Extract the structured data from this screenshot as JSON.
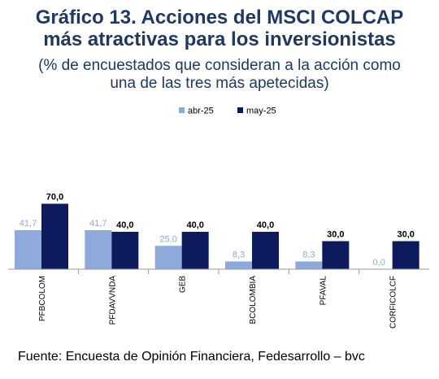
{
  "header": {
    "title_line1": "Gráfico 13. Acciones del MSCI COLCAP",
    "title_line2": "más atractivas para los inversionistas",
    "subtitle_line1": "(% de encuestados que consideran a la acción como",
    "subtitle_line2": "una de las tres más apetecidas)"
  },
  "footer": {
    "source": "Fuente: Encuesta de Opinión Financiera, Fedesarrollo – bvc"
  },
  "chart_data": {
    "type": "bar",
    "categories": [
      "PFBCOLOM",
      "PFDAVVNDA",
      "GEB",
      "BCOLOMBIA",
      "PFAVAL",
      "CORFICOLCF"
    ],
    "series": [
      {
        "name": "abr-25",
        "values": [
          41.7,
          41.7,
          25.0,
          8.3,
          8.3,
          0.0
        ],
        "color": "#8eaadb",
        "label_color": "#8eaadb"
      },
      {
        "name": "may-25",
        "values": [
          70.0,
          40.0,
          40.0,
          40.0,
          30.0,
          30.0
        ],
        "color": "#0d1b5e",
        "label_color": "#000000"
      }
    ],
    "ylim": [
      0,
      75
    ],
    "grid": false,
    "legend": "top-center",
    "data_labels": true,
    "decimal_separator": ","
  }
}
